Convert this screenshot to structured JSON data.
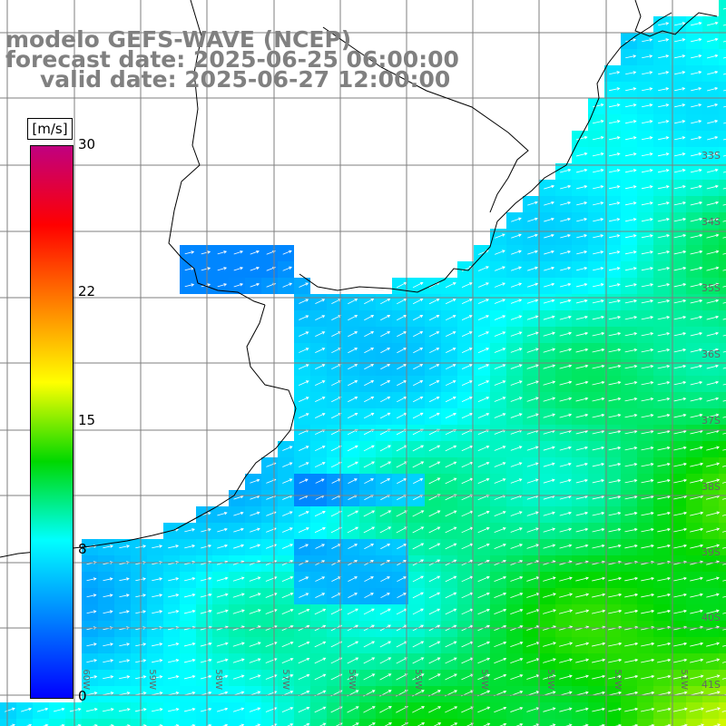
{
  "title": {
    "model": "modelo GEFS-WAVE (NCEP)",
    "forecast": "forecast date: 2025-06-25 06:00:00",
    "valid": "valid date: 2025-06-27 12:00:00"
  },
  "colorbar": {
    "units": "[m/s]",
    "min": 0,
    "max": 30,
    "labels": [
      "30",
      "22",
      "15",
      "8",
      "0"
    ],
    "label_values": [
      30,
      22,
      15,
      8,
      0
    ],
    "colormap": [
      "#0000ff",
      "#0080ff",
      "#00ffff",
      "#00d800",
      "#ffff00",
      "#ff8000",
      "#ff0000",
      "#c00080"
    ]
  },
  "map": {
    "region": "Rio de la Plata / South Atlantic",
    "variable": "wind speed and direction",
    "lat_labels": [
      "33S",
      "34S",
      "35S",
      "36S",
      "37S",
      "38S",
      "39S",
      "40S",
      "41S"
    ],
    "lon_labels": [
      "60W",
      "59W",
      "58W",
      "57W",
      "56W",
      "55W",
      "54W",
      "53W",
      "52W",
      "51W"
    ],
    "land_color": "#ffffff",
    "grid_color": "#7f7f7f",
    "arrow_color": "#ffffff",
    "wind_direction": "from west/south-west toward east/north-east",
    "speed_range_ms": [
      5,
      15
    ]
  }
}
